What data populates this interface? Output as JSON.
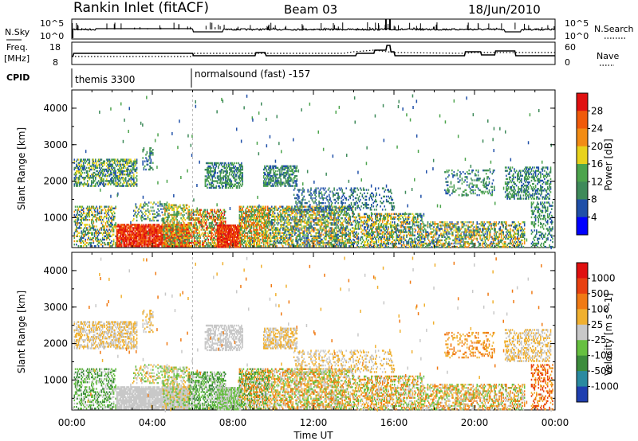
{
  "header": {
    "title": "Rankin Inlet (fitACF)",
    "beam": "Beam 03",
    "date": "18/Jun/2010"
  },
  "left_labels": {
    "nsky": "N.Sky",
    "freq": "Freq.",
    "freq_unit": "[MHz]",
    "cpid": "CPID"
  },
  "right_labels": {
    "nsearch": "N.Search",
    "nave": "Nave"
  },
  "top_panel": {
    "left_ticks": [
      "10^5",
      "10^0"
    ],
    "right_ticks": [
      "10^5",
      "10^0"
    ]
  },
  "freq_panel": {
    "left_ticks": [
      "18",
      "8"
    ],
    "right_ticks": [
      "60",
      "0"
    ]
  },
  "cpid_panel": {
    "segments": [
      {
        "label": "themis 3300",
        "start_hour": 0
      },
      {
        "label": "normalsound (fast) -157",
        "start_hour": 6
      }
    ]
  },
  "colors": {
    "power_scale": [
      "#0000ff",
      "#1f4fa8",
      "#3e8a5a",
      "#4ca44c",
      "#e8d21c",
      "#f28c14",
      "#f05a0a",
      "#e01010"
    ],
    "velocity_scale": [
      "#1f3fb0",
      "#2a8aa0",
      "#3c8c3c",
      "#66c040",
      "#c8c8c8",
      "#f0b030",
      "#f07a14",
      "#e84010",
      "#e01010"
    ]
  },
  "chart_data": [
    {
      "type": "heatmap",
      "title": "",
      "xlabel": "Time UT",
      "ylabel": "Slant Range [km]",
      "x_ticks": [
        "00:00",
        "04:00",
        "08:00",
        "12:00",
        "16:00",
        "20:00",
        "00:00"
      ],
      "y_ticks": [
        "1000",
        "2000",
        "3000",
        "4000"
      ],
      "ylim": [
        180,
        4500
      ],
      "colorbar_label": "Power [dB]",
      "colorbar_ticks": [
        "4",
        "8",
        "12",
        "16",
        "20",
        "24",
        "28"
      ],
      "colorbar_range": [
        0,
        30
      ]
    },
    {
      "type": "heatmap",
      "title": "",
      "xlabel": "Time UT",
      "ylabel": "Slant Range [km]",
      "x_ticks": [
        "00:00",
        "04:00",
        "08:00",
        "12:00",
        "16:00",
        "20:00",
        "00:00"
      ],
      "y_ticks": [
        "1000",
        "2000",
        "3000",
        "4000"
      ],
      "ylim": [
        180,
        4500
      ],
      "colorbar_label": "Velocity [m s^-1]",
      "colorbar_ticks": [
        "1000",
        "500",
        "100",
        "25",
        "-25",
        "-100",
        "-500",
        "-1000"
      ]
    }
  ],
  "time_axis_label": "Time UT"
}
